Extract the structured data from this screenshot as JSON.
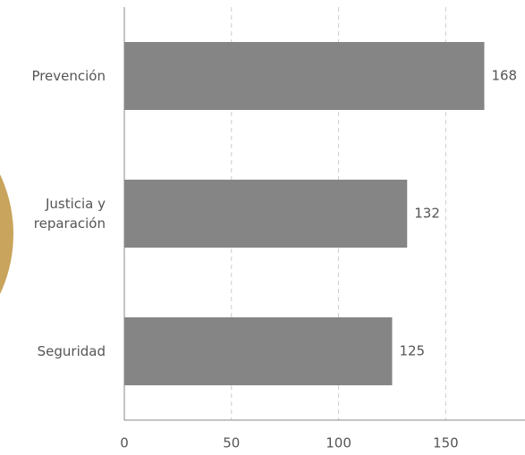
{
  "chart_data": {
    "type": "barh",
    "categories": [
      "Prevención",
      "Justicia y reparación",
      "Seguridad"
    ],
    "values": [
      168,
      132,
      125
    ],
    "color": "#858585",
    "xlim": [
      0,
      187
    ],
    "xticks": [
      0,
      50,
      100,
      150
    ],
    "grid": true
  }
}
